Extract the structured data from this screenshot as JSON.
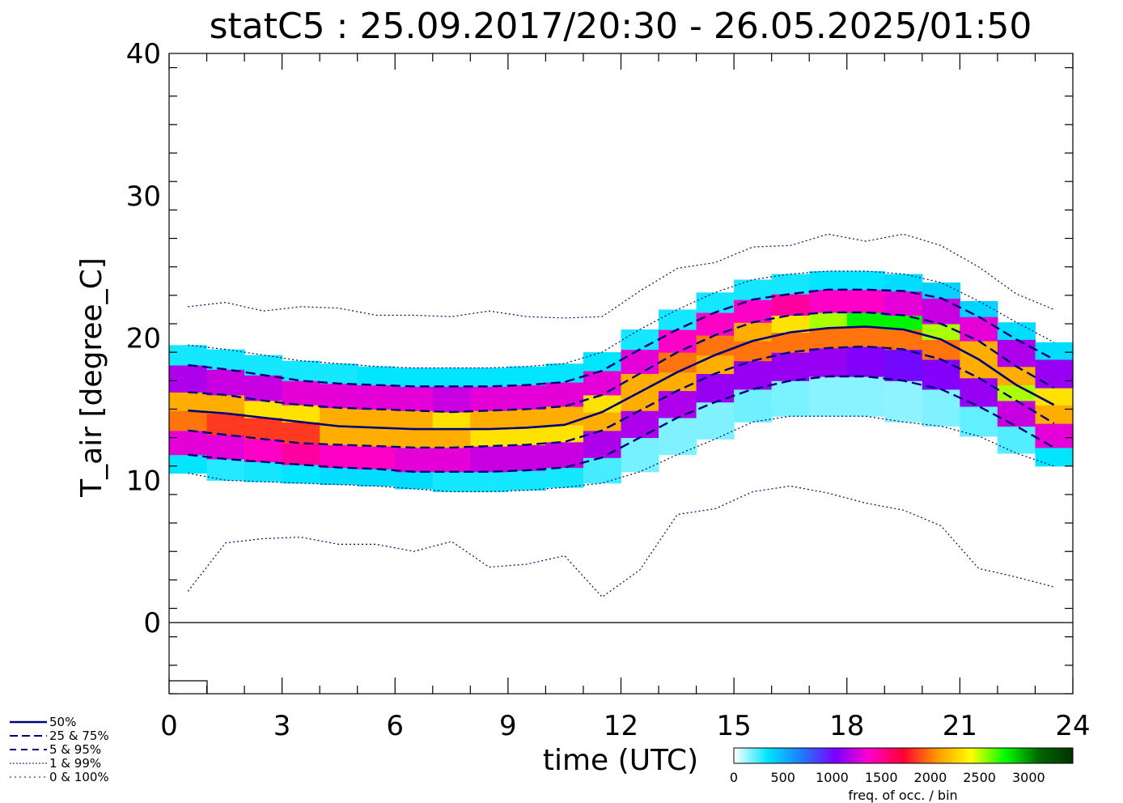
{
  "chart_data": {
    "type": "heatmap",
    "title": "statC5 : 25.09.2017/20:30 - 26.05.2025/01:50",
    "xlabel": "time (UTC)",
    "ylabel": "T_air [degree_C]",
    "xlim": [
      0,
      24
    ],
    "ylim": [
      -5,
      40
    ],
    "xticks": [
      0,
      3,
      6,
      9,
      12,
      15,
      18,
      21,
      24
    ],
    "yticks": [
      0,
      10,
      20,
      30,
      40
    ],
    "x": [
      0.5,
      1.5,
      2.5,
      3.5,
      4.5,
      5.5,
      6.5,
      7.5,
      8.5,
      9.5,
      10.5,
      11.5,
      12.5,
      13.5,
      14.5,
      15.5,
      16.5,
      17.5,
      18.5,
      19.5,
      20.5,
      21.5,
      22.5,
      23.5
    ],
    "series": [
      {
        "name": "0%",
        "style": "dotted",
        "values": [
          2.2,
          5.6,
          5.9,
          6.0,
          5.5,
          5.5,
          5.0,
          5.7,
          3.9,
          4.1,
          4.7,
          1.8,
          3.7,
          7.6,
          8.0,
          9.2,
          9.6,
          9.1,
          8.4,
          7.9,
          6.8,
          3.8,
          3.2,
          2.5
        ]
      },
      {
        "name": "1%",
        "style": "dotted",
        "values": [
          10.5,
          10.0,
          9.9,
          9.8,
          9.7,
          9.6,
          9.4,
          9.2,
          9.2,
          9.3,
          9.5,
          9.8,
          10.6,
          11.8,
          12.9,
          14.1,
          14.5,
          14.5,
          14.5,
          14.1,
          13.8,
          13.1,
          11.9,
          11.0
        ]
      },
      {
        "name": "5%",
        "style": "dashed",
        "values": [
          11.8,
          11.5,
          11.3,
          11.1,
          10.9,
          10.8,
          10.6,
          10.6,
          10.6,
          10.7,
          10.9,
          11.6,
          13.0,
          14.4,
          15.5,
          16.4,
          17.0,
          17.3,
          17.3,
          17.0,
          16.4,
          15.2,
          13.8,
          12.3
        ]
      },
      {
        "name": "25%",
        "style": "dashed",
        "values": [
          13.5,
          13.2,
          12.9,
          12.6,
          12.5,
          12.4,
          12.3,
          12.3,
          12.4,
          12.5,
          12.7,
          13.5,
          14.9,
          16.3,
          17.5,
          18.4,
          19.0,
          19.3,
          19.4,
          19.2,
          18.5,
          17.2,
          15.6,
          14.0
        ]
      },
      {
        "name": "50%",
        "style": "solid",
        "values": [
          14.9,
          14.7,
          14.4,
          14.1,
          13.8,
          13.7,
          13.6,
          13.6,
          13.6,
          13.7,
          13.9,
          14.8,
          16.2,
          17.6,
          18.8,
          19.8,
          20.4,
          20.7,
          20.8,
          20.6,
          19.9,
          18.5,
          16.7,
          15.3
        ]
      },
      {
        "name": "75%",
        "style": "dashed",
        "values": [
          16.2,
          16.0,
          15.6,
          15.3,
          15.1,
          15.0,
          14.9,
          14.8,
          14.9,
          15.0,
          15.2,
          16.0,
          17.5,
          19.0,
          20.2,
          21.1,
          21.6,
          21.8,
          21.8,
          21.6,
          21.0,
          19.8,
          18.0,
          16.5
        ]
      },
      {
        "name": "95%",
        "style": "dashed",
        "values": [
          18.1,
          17.8,
          17.4,
          17.0,
          16.8,
          16.7,
          16.6,
          16.6,
          16.6,
          16.7,
          16.9,
          17.7,
          19.2,
          20.6,
          21.8,
          22.7,
          23.1,
          23.4,
          23.4,
          23.3,
          22.8,
          21.5,
          19.9,
          18.5
        ]
      },
      {
        "name": "99%",
        "style": "dotted",
        "values": [
          19.5,
          19.2,
          18.8,
          18.4,
          18.2,
          18.0,
          17.9,
          17.9,
          17.9,
          18.0,
          18.2,
          19.0,
          20.6,
          22.0,
          23.2,
          24.1,
          24.5,
          24.7,
          24.7,
          24.5,
          23.9,
          22.6,
          21.1,
          19.7
        ]
      },
      {
        "name": "100%",
        "style": "dotted",
        "values": [
          22.2,
          22.5,
          21.9,
          22.2,
          22.1,
          21.6,
          21.6,
          21.5,
          21.9,
          21.5,
          21.4,
          21.5,
          23.3,
          24.9,
          25.3,
          26.4,
          26.5,
          27.3,
          26.8,
          27.3,
          26.5,
          25.0,
          23.1,
          22.0
        ]
      }
    ],
    "legend": {
      "position": "bottom-left",
      "entries": [
        {
          "label": "50%",
          "style": "solid"
        },
        {
          "label": "25 &  75%",
          "style": "dashed"
        },
        {
          "label": "5 &  95%",
          "style": "dashed-fine"
        },
        {
          "label": "1 &  99%",
          "style": "dotted"
        },
        {
          "label": "0 & 100%",
          "style": "dotted-sparse"
        }
      ]
    },
    "colorbar": {
      "label": "freq. of occ. / bin",
      "ticks": [
        "0",
        "500",
        "1000",
        "1500",
        "2000",
        "2500",
        "3000"
      ],
      "tick_values": [
        0,
        500,
        1000,
        1500,
        2000,
        2500,
        3000
      ],
      "range": [
        0,
        3450
      ],
      "colors": [
        "#ffffff",
        "#00e5ff",
        "#1e7bff",
        "#7a00ff",
        "#ff00cc",
        "#ff0033",
        "#ff9900",
        "#ffff00",
        "#00ff00",
        "#006600",
        "#003300"
      ]
    },
    "line_color": "#00007a"
  }
}
